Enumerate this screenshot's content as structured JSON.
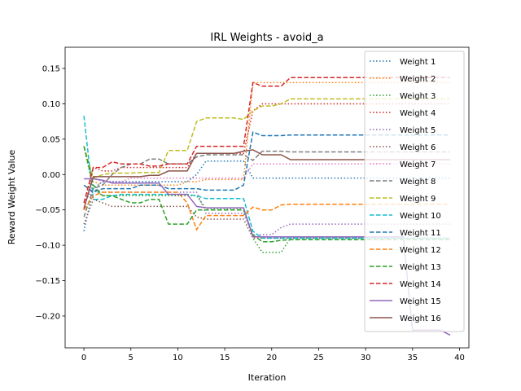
{
  "chart_data": {
    "type": "line",
    "title": "IRL Weights - avoid_a",
    "xlabel": "Iteration",
    "ylabel": "Reward Weight Value",
    "xlim": [
      -2,
      41
    ],
    "ylim": [
      -0.245,
      0.18
    ],
    "xticks": [
      0,
      5,
      10,
      15,
      20,
      25,
      30,
      35,
      40
    ],
    "yticks": [
      -0.2,
      -0.15,
      -0.1,
      -0.05,
      0.0,
      0.05,
      0.1,
      0.15
    ],
    "ytick_labels": [
      "−0.20",
      "−0.15",
      "−0.10",
      "−0.05",
      "0.00",
      "0.05",
      "0.10",
      "0.15"
    ],
    "grid": false,
    "legend_position": "top-right",
    "x": [
      0,
      1,
      2,
      3,
      4,
      5,
      6,
      7,
      8,
      9,
      10,
      11,
      12,
      13,
      14,
      15,
      16,
      17,
      18,
      19,
      20,
      21,
      22,
      23,
      24,
      25,
      26,
      27,
      28,
      29,
      30,
      31,
      32,
      33,
      34,
      35,
      36,
      37,
      38,
      39
    ],
    "series": [
      {
        "name": "Weight 1",
        "color": "#1f77b4",
        "dash": "dotted",
        "values": [
          -0.08,
          -0.02,
          -0.01,
          -0.01,
          -0.01,
          -0.01,
          -0.01,
          -0.01,
          -0.01,
          -0.01,
          -0.01,
          -0.01,
          0.0,
          0.019,
          0.019,
          0.019,
          0.019,
          0.019,
          -0.005,
          -0.005,
          -0.005,
          -0.005,
          -0.005,
          -0.005,
          -0.005,
          -0.005,
          -0.005,
          -0.005,
          -0.005,
          -0.005,
          -0.005,
          -0.005,
          -0.005,
          -0.005,
          -0.005,
          -0.005,
          -0.005,
          -0.005,
          -0.005,
          -0.005
        ]
      },
      {
        "name": "Weight 2",
        "color": "#ff7f0e",
        "dash": "dotted",
        "values": [
          0.04,
          -0.01,
          -0.015,
          -0.015,
          -0.015,
          -0.015,
          -0.015,
          -0.015,
          -0.015,
          -0.015,
          -0.015,
          -0.01,
          -0.01,
          -0.007,
          -0.007,
          -0.007,
          -0.007,
          -0.007,
          0.13,
          0.13,
          0.13,
          0.13,
          0.13,
          0.13,
          0.13,
          0.13,
          0.13,
          0.13,
          0.13,
          0.13,
          0.13,
          0.13,
          0.13,
          0.13,
          0.13,
          0.13,
          0.13,
          0.13,
          0.13,
          0.13
        ]
      },
      {
        "name": "Weight 3",
        "color": "#2ca02c",
        "dash": "dotted",
        "values": [
          0.04,
          -0.02,
          -0.03,
          -0.03,
          -0.03,
          -0.03,
          -0.03,
          -0.03,
          -0.03,
          -0.03,
          -0.03,
          -0.03,
          -0.03,
          -0.048,
          -0.048,
          -0.048,
          -0.048,
          -0.048,
          -0.09,
          -0.11,
          -0.11,
          -0.11,
          -0.09,
          -0.09,
          -0.09,
          -0.09,
          -0.09,
          -0.09,
          -0.09,
          -0.09,
          -0.09,
          -0.09,
          -0.09,
          -0.09,
          -0.09,
          -0.09,
          -0.09,
          -0.09,
          -0.09,
          -0.09
        ]
      },
      {
        "name": "Weight 4",
        "color": "#d62728",
        "dash": "dotted",
        "values": [
          -0.05,
          0.01,
          0.005,
          0.005,
          0.01,
          0.01,
          0.01,
          0.01,
          0.01,
          0.01,
          0.01,
          0.01,
          0.03,
          0.03,
          0.03,
          0.03,
          0.03,
          0.03,
          0.09,
          0.1,
          0.1,
          0.1,
          0.1,
          0.1,
          0.1,
          0.1,
          0.1,
          0.1,
          0.1,
          0.1,
          0.1,
          0.1,
          0.1,
          0.1,
          0.1,
          0.1,
          0.1,
          0.1,
          0.1,
          0.1
        ]
      },
      {
        "name": "Weight 5",
        "color": "#9467bd",
        "dash": "dotted",
        "values": [
          -0.04,
          -0.02,
          -0.025,
          -0.025,
          -0.025,
          -0.025,
          -0.025,
          -0.025,
          -0.025,
          -0.025,
          -0.025,
          -0.025,
          -0.025,
          -0.055,
          -0.055,
          -0.055,
          -0.055,
          -0.055,
          -0.085,
          -0.085,
          -0.085,
          -0.075,
          -0.07,
          -0.07,
          -0.07,
          -0.07,
          -0.07,
          -0.07,
          -0.07,
          -0.07,
          -0.07,
          -0.07,
          -0.07,
          -0.07,
          -0.07,
          -0.07,
          -0.07,
          -0.07,
          -0.07,
          -0.07
        ]
      },
      {
        "name": "Weight 6",
        "color": "#8c564b",
        "dash": "dotted",
        "values": [
          -0.07,
          -0.035,
          -0.04,
          -0.045,
          -0.045,
          -0.045,
          -0.045,
          -0.045,
          -0.045,
          -0.045,
          -0.045,
          -0.045,
          -0.06,
          -0.063,
          -0.063,
          -0.063,
          -0.063,
          -0.063,
          -0.09,
          -0.09,
          -0.09,
          -0.09,
          -0.09,
          -0.09,
          -0.09,
          -0.09,
          -0.09,
          -0.09,
          -0.09,
          -0.09,
          -0.09,
          -0.09,
          -0.09,
          -0.09,
          -0.09,
          -0.09,
          -0.09,
          -0.09,
          -0.09,
          -0.09
        ]
      },
      {
        "name": "Weight 7",
        "color": "#e377c2",
        "dash": "dotted",
        "values": [
          -0.04,
          -0.005,
          -0.01,
          -0.01,
          -0.01,
          -0.005,
          -0.005,
          -0.005,
          -0.005,
          -0.005,
          -0.005,
          -0.005,
          -0.005,
          -0.005,
          -0.005,
          -0.005,
          -0.005,
          -0.005,
          0.015,
          0.015,
          0.015,
          0.015,
          0.015,
          0.015,
          0.015,
          0.015,
          0.015,
          0.015,
          0.015,
          0.015,
          0.015,
          0.015,
          0.015,
          0.015,
          0.015,
          0.015,
          0.015,
          0.015,
          0.015,
          0.015
        ]
      },
      {
        "name": "Weight 8",
        "color": "#7f7f7f",
        "dash": "dashed",
        "values": [
          -0.06,
          -0.02,
          -0.015,
          0.0,
          0.01,
          0.015,
          0.015,
          0.022,
          0.022,
          0.015,
          0.015,
          0.015,
          0.025,
          0.028,
          0.028,
          0.028,
          0.028,
          0.028,
          0.02,
          0.033,
          0.033,
          0.033,
          0.032,
          0.032,
          0.032,
          0.032,
          0.032,
          0.032,
          0.032,
          0.032,
          0.032,
          0.032,
          0.032,
          0.032,
          0.032,
          0.032,
          0.032,
          0.032,
          0.032,
          0.032
        ]
      },
      {
        "name": "Weight 9",
        "color": "#bcbd22",
        "dash": "dashed",
        "values": [
          0.04,
          -0.005,
          0.0,
          0.002,
          0.002,
          0.002,
          0.003,
          0.003,
          0.003,
          0.034,
          0.034,
          0.034,
          0.075,
          0.08,
          0.08,
          0.08,
          0.08,
          0.078,
          0.09,
          0.097,
          0.097,
          0.1,
          0.107,
          0.107,
          0.107,
          0.107,
          0.107,
          0.107,
          0.107,
          0.107,
          0.107,
          0.107,
          0.107,
          0.107,
          0.107,
          0.107,
          0.107,
          0.107,
          0.107,
          0.107
        ]
      },
      {
        "name": "Weight 10",
        "color": "#17becf",
        "dash": "dashed",
        "values": [
          0.083,
          -0.035,
          -0.035,
          -0.03,
          -0.028,
          -0.028,
          -0.028,
          -0.028,
          -0.028,
          -0.028,
          -0.028,
          -0.028,
          -0.03,
          -0.034,
          -0.034,
          -0.034,
          -0.034,
          -0.034,
          -0.08,
          -0.09,
          -0.09,
          -0.09,
          -0.09,
          -0.09,
          -0.09,
          -0.09,
          -0.09,
          -0.09,
          -0.09,
          -0.09,
          -0.09,
          -0.09,
          -0.09,
          -0.09,
          -0.09,
          -0.09,
          -0.09,
          -0.09,
          -0.09,
          -0.09
        ]
      },
      {
        "name": "Weight 11",
        "color": "#1f77b4",
        "dash": "dashed",
        "values": [
          -0.015,
          -0.025,
          -0.02,
          -0.02,
          -0.02,
          -0.02,
          -0.015,
          -0.015,
          -0.015,
          -0.02,
          -0.02,
          -0.02,
          -0.02,
          -0.022,
          -0.022,
          -0.022,
          -0.022,
          -0.015,
          0.06,
          0.055,
          0.055,
          0.055,
          0.056,
          0.056,
          0.056,
          0.056,
          0.056,
          0.056,
          0.056,
          0.056,
          0.056,
          0.056,
          0.056,
          0.056,
          0.056,
          0.056,
          0.056,
          0.056,
          0.056,
          0.056
        ]
      },
      {
        "name": "Weight 12",
        "color": "#ff7f0e",
        "dash": "dashed",
        "values": [
          -0.05,
          -0.03,
          -0.025,
          -0.025,
          -0.025,
          -0.025,
          -0.025,
          -0.025,
          -0.025,
          -0.025,
          -0.025,
          -0.04,
          -0.078,
          -0.058,
          -0.058,
          -0.058,
          -0.058,
          -0.058,
          -0.046,
          -0.05,
          -0.05,
          -0.043,
          -0.042,
          -0.042,
          -0.042,
          -0.042,
          -0.042,
          -0.042,
          -0.042,
          -0.042,
          -0.042,
          -0.042,
          -0.042,
          -0.042,
          -0.042,
          -0.042,
          -0.042,
          -0.042,
          -0.042,
          -0.042
        ]
      },
      {
        "name": "Weight 13",
        "color": "#2ca02c",
        "dash": "dashed",
        "values": [
          0.04,
          -0.015,
          -0.03,
          -0.03,
          -0.035,
          -0.04,
          -0.04,
          -0.035,
          -0.035,
          -0.07,
          -0.07,
          -0.07,
          -0.05,
          -0.05,
          -0.05,
          -0.05,
          -0.05,
          -0.05,
          -0.085,
          -0.095,
          -0.095,
          -0.093,
          -0.092,
          -0.092,
          -0.092,
          -0.092,
          -0.092,
          -0.092,
          -0.092,
          -0.092,
          -0.092,
          -0.092,
          -0.092,
          -0.092,
          -0.092,
          -0.092,
          -0.092,
          -0.092,
          -0.092,
          -0.092
        ]
      },
      {
        "name": "Weight 14",
        "color": "#d62728",
        "dash": "dashed",
        "values": [
          -0.04,
          0.01,
          0.01,
          0.018,
          0.015,
          0.015,
          0.015,
          0.012,
          0.012,
          0.015,
          0.015,
          0.015,
          0.04,
          0.04,
          0.04,
          0.04,
          0.04,
          0.04,
          0.13,
          0.125,
          0.125,
          0.125,
          0.137,
          0.137,
          0.137,
          0.137,
          0.137,
          0.137,
          0.137,
          0.137,
          0.137,
          0.137,
          0.137,
          0.137,
          0.137,
          0.137,
          0.137,
          0.137,
          0.137,
          0.137
        ]
      },
      {
        "name": "Weight 15",
        "color": "#9467bd",
        "dash": "solid",
        "values": [
          -0.006,
          -0.006,
          -0.008,
          -0.012,
          -0.012,
          -0.012,
          -0.012,
          -0.012,
          -0.012,
          -0.028,
          -0.028,
          -0.028,
          -0.045,
          -0.047,
          -0.047,
          -0.047,
          -0.047,
          -0.047,
          -0.088,
          -0.088,
          -0.088,
          -0.088,
          -0.088,
          -0.088,
          -0.088,
          -0.088,
          -0.088,
          -0.088,
          -0.088,
          -0.088,
          -0.088,
          -0.088,
          -0.088,
          -0.088,
          -0.088,
          -0.22,
          -0.22,
          -0.22,
          -0.22,
          -0.227
        ]
      },
      {
        "name": "Weight 16",
        "color": "#8c564b",
        "dash": "solid",
        "values": [
          -0.048,
          -0.003,
          -0.003,
          -0.003,
          -0.003,
          -0.003,
          -0.003,
          -0.001,
          -0.001,
          0.005,
          0.005,
          0.005,
          0.03,
          0.03,
          0.03,
          0.03,
          0.03,
          0.033,
          0.035,
          0.028,
          0.028,
          0.028,
          0.021,
          0.021,
          0.021,
          0.021,
          0.021,
          0.021,
          0.021,
          0.021,
          0.021,
          0.021,
          0.021,
          0.021,
          0.021,
          0.021,
          0.021,
          0.021,
          0.021,
          0.021
        ]
      }
    ]
  }
}
